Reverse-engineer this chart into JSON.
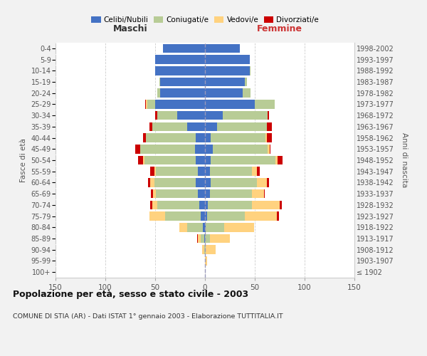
{
  "age_groups": [
    "100+",
    "95-99",
    "90-94",
    "85-89",
    "80-84",
    "75-79",
    "70-74",
    "65-69",
    "60-64",
    "55-59",
    "50-54",
    "45-49",
    "40-44",
    "35-39",
    "30-34",
    "25-29",
    "20-24",
    "15-19",
    "10-14",
    "5-9",
    "0-4"
  ],
  "birth_years": [
    "≤ 1902",
    "1903-1907",
    "1908-1912",
    "1913-1917",
    "1918-1922",
    "1923-1927",
    "1928-1932",
    "1933-1937",
    "1938-1942",
    "1943-1947",
    "1948-1952",
    "1953-1957",
    "1958-1962",
    "1963-1967",
    "1968-1972",
    "1973-1977",
    "1978-1982",
    "1983-1987",
    "1988-1992",
    "1993-1997",
    "1998-2002"
  ],
  "maschi": {
    "celibi": [
      0,
      0,
      0,
      1,
      2,
      4,
      6,
      7,
      9,
      7,
      9,
      10,
      9,
      18,
      28,
      50,
      45,
      45,
      50,
      50,
      42
    ],
    "coniugati": [
      0,
      0,
      1,
      3,
      16,
      36,
      42,
      42,
      42,
      42,
      52,
      55,
      50,
      35,
      20,
      8,
      3,
      1,
      0,
      0,
      0
    ],
    "vedovi": [
      0,
      0,
      2,
      3,
      8,
      16,
      5,
      3,
      4,
      2,
      1,
      0,
      0,
      0,
      0,
      1,
      0,
      0,
      0,
      0,
      0
    ],
    "divorziati": [
      0,
      0,
      0,
      1,
      0,
      0,
      2,
      2,
      2,
      4,
      5,
      5,
      3,
      3,
      2,
      1,
      0,
      0,
      0,
      0,
      0
    ]
  },
  "femmine": {
    "nubili": [
      0,
      0,
      0,
      0,
      1,
      2,
      3,
      5,
      6,
      5,
      6,
      8,
      6,
      12,
      18,
      50,
      38,
      40,
      45,
      45,
      35
    ],
    "coniugate": [
      0,
      0,
      1,
      5,
      18,
      38,
      44,
      42,
      46,
      42,
      65,
      55,
      55,
      50,
      45,
      20,
      8,
      2,
      1,
      0,
      0
    ],
    "vedove": [
      0,
      2,
      10,
      20,
      30,
      32,
      28,
      12,
      10,
      5,
      2,
      2,
      1,
      0,
      0,
      0,
      0,
      0,
      0,
      0,
      0
    ],
    "divorziate": [
      0,
      0,
      0,
      0,
      0,
      2,
      2,
      1,
      2,
      3,
      5,
      1,
      5,
      5,
      1,
      0,
      0,
      0,
      0,
      0,
      0
    ]
  },
  "color_celibi": "#4472C4",
  "color_coniugati": "#B8CC96",
  "color_vedovi": "#FFD27F",
  "color_divorziati": "#CC0000",
  "xlim": 150,
  "title": "Popolazione per età, sesso e stato civile - 2003",
  "subtitle": "COMUNE DI STIA (AR) - Dati ISTAT 1° gennaio 2003 - Elaborazione TUTTITALIA.IT",
  "ylabel_left": "Fasce di età",
  "ylabel_right": "Anni di nascita",
  "xlabel_maschi": "Maschi",
  "xlabel_femmine": "Femmine",
  "bg_color": "#F2F2F2",
  "plot_bg_color": "#FFFFFF"
}
